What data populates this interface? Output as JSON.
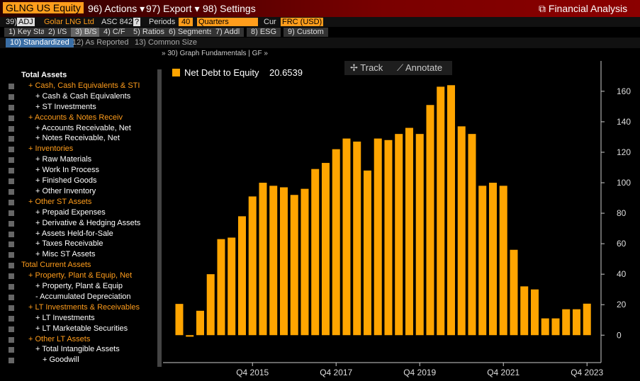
{
  "header": {
    "ticker": "GLNG US Equity",
    "actions": "96) Actions ▾",
    "export": "97) Export ▾",
    "settings": "98) Settings",
    "app": "Financial Analysis"
  },
  "toolbar": {
    "adj_no": "39)",
    "adj": "ADJ",
    "company": "Golar LNG Ltd",
    "standard": "ASC 842",
    "help": "?",
    "periods_label": "Periods",
    "periods": "40",
    "freq": "Quarters",
    "cur_label": "Cur",
    "cur": "FRC (USD)"
  },
  "tabs": [
    "1) Key Stats",
    "2) I/S",
    "3) B/S",
    "4) C/F",
    "5) Ratios",
    "6) Segments",
    "7) Addl",
    "8) ESG",
    "9) Custom"
  ],
  "subtabs": [
    "10) Standardized",
    "12) As Reported",
    "13) Common Size"
  ],
  "graph_header": "» 30) Graph Fundamentals | GF »",
  "buttons": [
    "Track",
    "Annotate"
  ],
  "left_panel": [
    "Total Assets",
    "+ Cash, Cash Equivalents & STI",
    "+ Cash & Cash Equivalents",
    "+ ST Investments",
    "+ Accounts & Notes Receiv",
    "+ Accounts Receivable, Net",
    "+ Notes Receivable, Net",
    "+ Inventories",
    "+ Raw Materials",
    "+ Work In Process",
    "+ Finished Goods",
    "+ Other Inventory",
    "+ Other ST Assets",
    "+ Prepaid Expenses",
    "+ Derivative & Hedging Assets",
    "+ Assets Held-for-Sale",
    "+ Taxes Receivable",
    "+ Misc ST Assets",
    "Total Current Assets",
    "+ Property, Plant & Equip, Net",
    "+ Property, Plant & Equip",
    "- Accumulated Depreciation",
    "+ LT Investments & Receivables",
    "+ LT Investments",
    "+ LT Marketable Securities",
    "+ Other LT Assets",
    "+ Total Intangible Assets",
    "+ Goodwill"
  ],
  "chart_data": {
    "type": "bar",
    "series_name": "Net Debt to Equity",
    "color": "#ffa500",
    "categories": [
      null,
      null,
      null,
      null,
      null,
      null,
      null,
      "Q4 2015",
      null,
      null,
      null,
      null,
      null,
      null,
      null,
      "Q4 2017",
      null,
      null,
      null,
      null,
      null,
      null,
      null,
      "Q4 2019",
      null,
      null,
      null,
      null,
      null,
      null,
      null,
      "Q4 2021",
      null,
      null,
      null,
      null,
      null,
      null,
      null,
      "Q4 2023"
    ],
    "values": [
      20.5,
      -1,
      16,
      40,
      63,
      64,
      78,
      91,
      100,
      98,
      97,
      92,
      96,
      109,
      113,
      122,
      129,
      127,
      108,
      129,
      128,
      132,
      136,
      132,
      151,
      163,
      164,
      137,
      132,
      98,
      100,
      98,
      56,
      32,
      30,
      11,
      11,
      17,
      17,
      20.6539
    ],
    "ylim": [
      -18,
      179
    ],
    "yticks": [
      0,
      20,
      40,
      60,
      80,
      100,
      120,
      140,
      160
    ]
  }
}
